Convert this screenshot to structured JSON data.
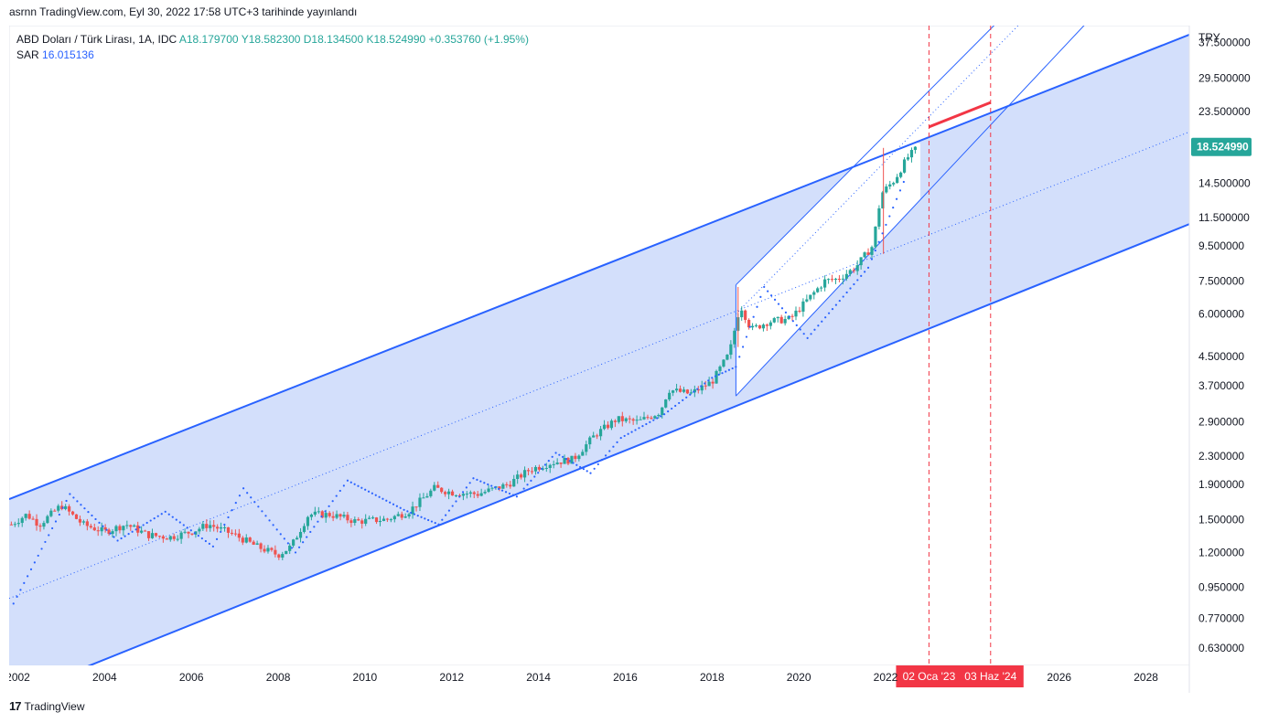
{
  "header": {
    "publish_line": "asrnn TradingView.com, Eyl 30, 2022 17:58 UTC+3 tarihinde yayınlandı"
  },
  "legend": {
    "symbol": "ABD Doları / Türk Lirası, 1A, IDC",
    "ohlc": "A18.179700 Y18.582300 D18.134500 K18.524990 +0.353760 (+1.95%)",
    "sar_label": "SAR",
    "sar_value": "16.015136"
  },
  "footer": {
    "brand": "TradingView",
    "logo": "17"
  },
  "colors": {
    "up": "#26a69a",
    "down": "#ef5350",
    "channel": "#2962ff",
    "channel_fill": "#d1ddfb",
    "marker": "#f23645"
  },
  "chart_data": {
    "type": "candlestick",
    "scale": "log",
    "currency_label": "TRY",
    "ylim": [
      0.56,
      42
    ],
    "xlim": [
      2001.8,
      2029.0
    ],
    "y_ticks": [
      "37.500000",
      "29.500000",
      "23.500000",
      "18.524990",
      "14.500000",
      "11.500000",
      "9.500000",
      "7.500000",
      "6.000000",
      "4.500000",
      "3.700000",
      "2.900000",
      "2.300000",
      "1.900000",
      "1.500000",
      "1.200000",
      "0.950000",
      "0.770000",
      "0.630000"
    ],
    "y_tick_values": [
      37.5,
      29.5,
      23.5,
      18.52499,
      14.5,
      11.5,
      9.5,
      7.5,
      6.0,
      4.5,
      3.7,
      2.9,
      2.3,
      1.9,
      1.5,
      1.2,
      0.95,
      0.77,
      0.63
    ],
    "last_price": {
      "label": "18.524990",
      "value": 18.52499
    },
    "x_ticks": [
      "2002",
      "2004",
      "2006",
      "2008",
      "2010",
      "2012",
      "2014",
      "2016",
      "2018",
      "2020",
      "2022",
      "2026",
      "2028"
    ],
    "x_tick_values": [
      2002,
      2004,
      2006,
      2008,
      2010,
      2012,
      2014,
      2016,
      2018,
      2020,
      2022,
      2026,
      2028
    ],
    "date_markers": [
      {
        "label": "02 Oca '23",
        "x": 2023.0
      },
      {
        "label": "03 Haz '24",
        "x": 2024.42
      }
    ],
    "price_path": [
      [
        2001.85,
        1.45
      ],
      [
        2002.2,
        1.55
      ],
      [
        2002.5,
        1.45
      ],
      [
        2003.0,
        1.65
      ],
      [
        2003.5,
        1.45
      ],
      [
        2004.0,
        1.38
      ],
      [
        2004.5,
        1.45
      ],
      [
        2005.0,
        1.35
      ],
      [
        2005.5,
        1.33
      ],
      [
        2006.0,
        1.38
      ],
      [
        2006.4,
        1.45
      ],
      [
        2007.0,
        1.35
      ],
      [
        2007.5,
        1.25
      ],
      [
        2008.0,
        1.18
      ],
      [
        2008.3,
        1.25
      ],
      [
        2008.7,
        1.55
      ],
      [
        2009.2,
        1.55
      ],
      [
        2009.8,
        1.48
      ],
      [
        2010.5,
        1.5
      ],
      [
        2011.0,
        1.58
      ],
      [
        2011.6,
        1.85
      ],
      [
        2012.0,
        1.8
      ],
      [
        2012.6,
        1.78
      ],
      [
        2013.3,
        1.9
      ],
      [
        2013.8,
        2.1
      ],
      [
        2014.3,
        2.2
      ],
      [
        2014.8,
        2.25
      ],
      [
        2015.3,
        2.65
      ],
      [
        2015.8,
        2.95
      ],
      [
        2016.3,
        2.9
      ],
      [
        2016.8,
        3.1
      ],
      [
        2017.0,
        3.6
      ],
      [
        2017.5,
        3.5
      ],
      [
        2018.0,
        3.8
      ],
      [
        2018.4,
        4.6
      ],
      [
        2018.65,
        6.4
      ],
      [
        2018.9,
        5.4
      ],
      [
        2019.3,
        5.7
      ],
      [
        2019.8,
        5.8
      ],
      [
        2020.2,
        6.6
      ],
      [
        2020.6,
        7.5
      ],
      [
        2020.9,
        7.6
      ],
      [
        2021.3,
        8.2
      ],
      [
        2021.7,
        9.5
      ],
      [
        2021.9,
        13.5
      ],
      [
        2022.2,
        14.8
      ],
      [
        2022.5,
        17.2
      ],
      [
        2022.75,
        18.52
      ]
    ],
    "sar_path": [
      [
        2001.9,
        0.85
      ],
      [
        2003.2,
        1.78
      ],
      [
        2004.3,
        1.3
      ],
      [
        2005.4,
        1.58
      ],
      [
        2006.5,
        1.25
      ],
      [
        2007.2,
        1.85
      ],
      [
        2008.4,
        1.2
      ],
      [
        2009.6,
        1.95
      ],
      [
        2010.9,
        1.6
      ],
      [
        2011.7,
        1.45
      ],
      [
        2012.5,
        1.98
      ],
      [
        2013.5,
        1.75
      ],
      [
        2014.4,
        2.35
      ],
      [
        2015.2,
        2.05
      ],
      [
        2015.9,
        2.6
      ],
      [
        2016.9,
        3.05
      ],
      [
        2018.0,
        3.9
      ],
      [
        2018.55,
        4.2
      ],
      [
        2019.2,
        7.2
      ],
      [
        2020.2,
        5.1
      ],
      [
        2021.6,
        8.2
      ],
      [
        2022.5,
        15.5
      ]
    ],
    "channels": {
      "main": {
        "upper": [
          [
            2001.8,
            1.72
          ],
          [
            2029.0,
            39.5
          ]
        ],
        "mid": [
          [
            2001.8,
            0.88
          ],
          [
            2029.0,
            20.5
          ]
        ],
        "lower": [
          [
            2001.8,
            0.45
          ],
          [
            2029.0,
            11.0
          ]
        ]
      },
      "steep": {
        "upper": [
          [
            2018.55,
            7.3
          ],
          [
            2024.95,
            48.0
          ]
        ],
        "mid": [
          [
            2018.55,
            6.0
          ],
          [
            2025.5,
            48.0
          ]
        ],
        "lower": [
          [
            2018.55,
            3.45
          ],
          [
            2027.0,
            48.0
          ]
        ]
      }
    },
    "target_segment": [
      [
        2023.0,
        21.2
      ],
      [
        2024.42,
        25.0
      ]
    ]
  }
}
